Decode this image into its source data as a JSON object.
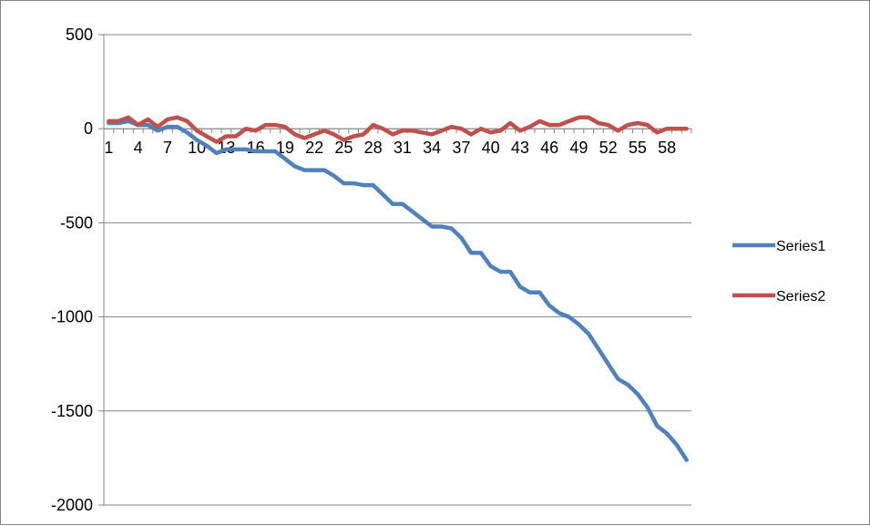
{
  "chart_data": {
    "type": "line",
    "title": "",
    "xlabel": "",
    "ylabel": "",
    "ylim": [
      -2000,
      500
    ],
    "yticks": [
      500,
      0,
      -500,
      -1000,
      -1500,
      -2000
    ],
    "x": [
      1,
      2,
      3,
      4,
      5,
      6,
      7,
      8,
      9,
      10,
      11,
      12,
      13,
      14,
      15,
      16,
      17,
      18,
      19,
      20,
      21,
      22,
      23,
      24,
      25,
      26,
      27,
      28,
      29,
      30,
      31,
      32,
      33,
      34,
      35,
      36,
      37,
      38,
      39,
      40,
      41,
      42,
      43,
      44,
      45,
      46,
      47,
      48,
      49,
      50,
      51,
      52,
      53,
      54,
      55,
      56,
      57,
      58,
      59,
      60
    ],
    "xtick_labels": [
      "1",
      "4",
      "7",
      "10",
      "13",
      "16",
      "19",
      "22",
      "25",
      "28",
      "31",
      "34",
      "37",
      "40",
      "43",
      "46",
      "49",
      "52",
      "55",
      "58"
    ],
    "grid": {
      "horizontal": true,
      "vertical": false
    },
    "legend_position": "right",
    "series": [
      {
        "name": "Series1",
        "color": "#4F81BD",
        "values": [
          30,
          30,
          40,
          20,
          20,
          -10,
          10,
          10,
          -20,
          -60,
          -90,
          -130,
          -110,
          -110,
          -110,
          -120,
          -120,
          -120,
          -160,
          -200,
          -220,
          -220,
          -220,
          -250,
          -290,
          -290,
          -300,
          -300,
          -350,
          -400,
          -400,
          -440,
          -480,
          -520,
          -520,
          -530,
          -580,
          -660,
          -660,
          -730,
          -760,
          -760,
          -840,
          -870,
          -870,
          -940,
          -980,
          -1000,
          -1040,
          -1090,
          -1170,
          -1250,
          -1330,
          -1360,
          -1410,
          -1480,
          -1580,
          -1620,
          -1680,
          -1760
        ]
      },
      {
        "name": "Series2",
        "color": "#C0504D",
        "values": [
          40,
          40,
          60,
          20,
          50,
          10,
          50,
          60,
          40,
          -10,
          -40,
          -70,
          -40,
          -40,
          0,
          -10,
          20,
          20,
          10,
          -30,
          -50,
          -30,
          -10,
          -30,
          -60,
          -40,
          -30,
          20,
          0,
          -30,
          -10,
          -10,
          -20,
          -30,
          -10,
          10,
          0,
          -30,
          0,
          -20,
          -10,
          30,
          -10,
          10,
          40,
          20,
          20,
          40,
          60,
          60,
          30,
          20,
          -10,
          20,
          30,
          20,
          -20,
          0,
          0,
          0
        ]
      }
    ]
  }
}
